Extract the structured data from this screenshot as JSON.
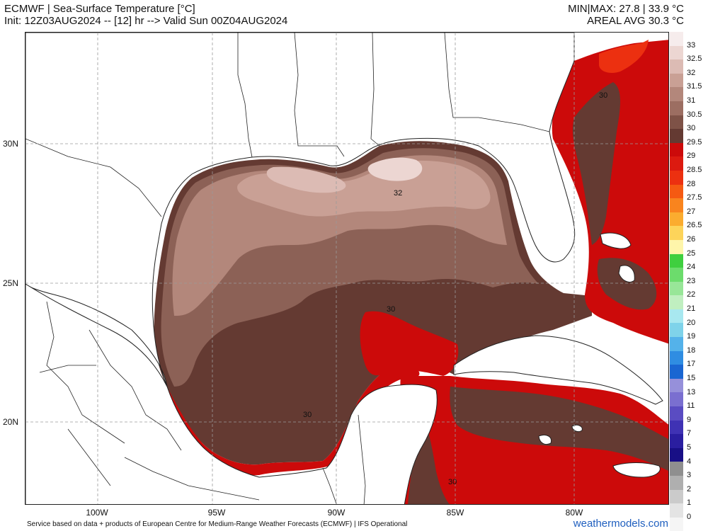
{
  "header": {
    "title": "ECMWF | Sea-Surface Temperature [°C]",
    "init": "Init: 12Z03AUG2024 -- [12] hr --> Valid Sun 00Z04AUG2024",
    "minmax": "MIN|MAX: 27.8 | 33.9 °C",
    "areal_avg": "AREAL AVG 30.3 °C"
  },
  "map": {
    "lat_labels": [
      "30N",
      "25N",
      "20N"
    ],
    "lon_labels": [
      "100W",
      "95W",
      "90W",
      "85W",
      "80W"
    ],
    "contour_labels": [
      "30",
      "32",
      "30",
      "30",
      "30"
    ]
  },
  "colorbar": {
    "labels": [
      "33",
      "32.5",
      "32",
      "31.5",
      "31",
      "30.5",
      "30",
      "29.5",
      "29",
      "28.5",
      "28",
      "27.5",
      "27",
      "26.5",
      "26",
      "25",
      "24",
      "23",
      "22",
      "21",
      "20",
      "19",
      "18",
      "17",
      "15",
      "13",
      "11",
      "9",
      "7",
      "5",
      "4",
      "3",
      "2",
      "1",
      "0"
    ],
    "colors": [
      "#f6ecec",
      "#ecd6d2",
      "#dcbbb4",
      "#c9a095",
      "#b3877b",
      "#9c6e62",
      "#7e5247",
      "#643a32",
      "#cc0a0a",
      "#dc1a10",
      "#ec3010",
      "#f55a12",
      "#f9841e",
      "#fbac2f",
      "#fdd45a",
      "#fef5aa",
      "#3fcf3f",
      "#6cdc6c",
      "#98e698",
      "#c0efc0",
      "#a8e8f0",
      "#7fd3ea",
      "#54b2ea",
      "#2f8de2",
      "#1a66d2",
      "#9690da",
      "#7a6fd0",
      "#5a4cc2",
      "#3f32b4",
      "#2a1ea0",
      "#180f86",
      "#8f8f8f",
      "#afafaf",
      "#cbcbcb",
      "#e4e4e4",
      "#f5f5f5"
    ]
  },
  "footer": {
    "credit": "Service based on data + products of European Centre for Medium-Range Weather Forecasts (ECMWF) | IFS Operational",
    "brand": "weathermodels.com"
  }
}
